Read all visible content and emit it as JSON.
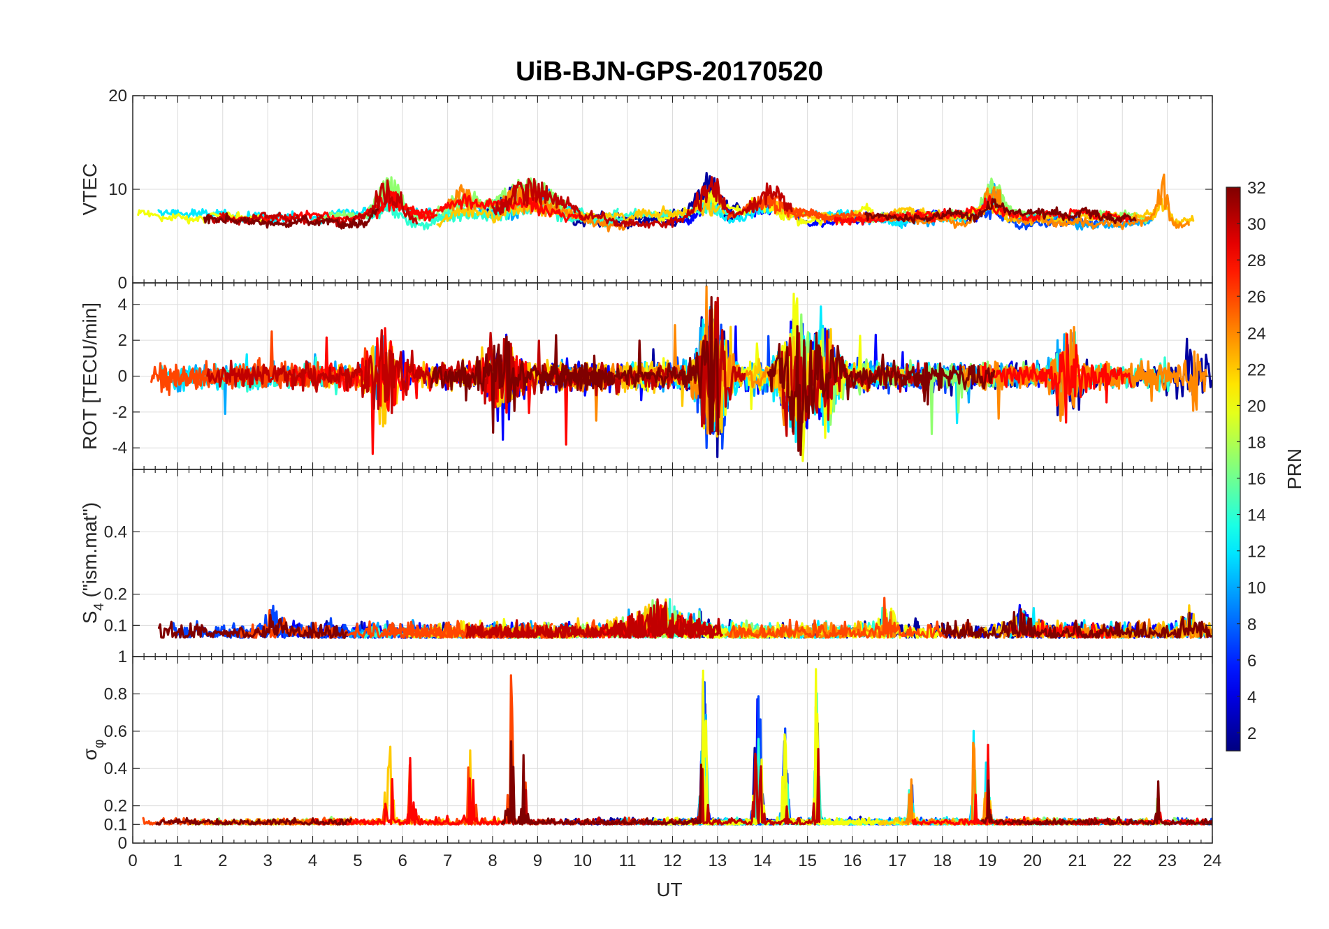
{
  "chart_data": {
    "type": "line",
    "title": "UiB-BJN-GPS-20170520",
    "xlabel": "UT",
    "xlim": [
      0,
      24
    ],
    "xticks": [
      0,
      1,
      2,
      3,
      4,
      5,
      6,
      7,
      8,
      9,
      10,
      11,
      12,
      13,
      14,
      15,
      16,
      17,
      18,
      19,
      20,
      21,
      22,
      23,
      24
    ],
    "grid": true,
    "colormap": "jet",
    "colorbar": {
      "label": "PRN",
      "range": [
        1,
        32
      ],
      "ticks": [
        2,
        4,
        6,
        8,
        10,
        12,
        14,
        16,
        18,
        20,
        22,
        24,
        26,
        28,
        30,
        32
      ],
      "placement": "right"
    },
    "panels": [
      {
        "id": "vtec",
        "ylabel": "VTEC",
        "ylim": [
          0,
          20
        ],
        "yticks": [
          0,
          10,
          20
        ],
        "baseline": 7,
        "noise": 1.2,
        "events": [
          {
            "t": 5.7,
            "h": 5,
            "w": 0.5
          },
          {
            "t": 7.3,
            "h": 3,
            "w": 0.6
          },
          {
            "t": 8.8,
            "h": 4,
            "w": 1.2
          },
          {
            "t": 12.8,
            "h": 5,
            "w": 0.5
          },
          {
            "t": 14.2,
            "h": 4,
            "w": 0.8
          },
          {
            "t": 19.1,
            "h": 4,
            "w": 0.4
          },
          {
            "t": 22.9,
            "h": 5,
            "w": 0.2
          }
        ]
      },
      {
        "id": "rot",
        "ylabel": "ROT [TECU/min]",
        "ylim": [
          -5.2,
          5.2
        ],
        "yticks": [
          -4,
          -2,
          0,
          2,
          4
        ],
        "baseline": 0,
        "noise": 0.5,
        "events": [
          {
            "t": 5.6,
            "h": 3.5,
            "w": 0.6
          },
          {
            "t": 8.2,
            "h": 3.0,
            "w": 0.6
          },
          {
            "t": 12.9,
            "h": 5.2,
            "w": 0.5
          },
          {
            "t": 14.8,
            "h": 5.0,
            "w": 0.6
          },
          {
            "t": 15.4,
            "h": 3.5,
            "w": 0.4
          },
          {
            "t": 20.8,
            "h": 3.0,
            "w": 0.5
          },
          {
            "t": 23.6,
            "h": 3.0,
            "w": 0.4
          }
        ]
      },
      {
        "id": "s4",
        "ylabel": "S4 (\"ism.mat\")",
        "ylabel_main": "S",
        "ylabel_sub": "4",
        "ylabel_rest": " (\"ism.mat\")",
        "ylim": [
          0,
          0.6
        ],
        "yticks": [
          0.1,
          0.2,
          0.4
        ],
        "baseline": 0.06,
        "noise": 0.03,
        "events": [
          {
            "t": 0.3,
            "h": 0.08,
            "w": 0.4
          },
          {
            "t": 3.1,
            "h": 0.1,
            "w": 0.4
          },
          {
            "t": 11.7,
            "h": 0.1,
            "w": 1.2
          },
          {
            "t": 16.8,
            "h": 0.1,
            "w": 0.3
          },
          {
            "t": 19.8,
            "h": 0.08,
            "w": 0.5
          },
          {
            "t": 23.5,
            "h": 0.08,
            "w": 0.3
          }
        ]
      },
      {
        "id": "sigma",
        "ylabel": "σ φ",
        "ylabel_main": "σ",
        "ylabel_sub": "φ",
        "ylim": [
          0,
          1
        ],
        "yticks": [
          0,
          0.1,
          0.2,
          0.4,
          0.6,
          0.8,
          1
        ],
        "baseline": 0.1,
        "noise": 0.02,
        "events": [
          {
            "t": 5.7,
            "h": 0.45,
            "w": 0.15
          },
          {
            "t": 6.2,
            "h": 0.45,
            "w": 0.1
          },
          {
            "t": 7.5,
            "h": 0.5,
            "w": 0.15
          },
          {
            "t": 8.4,
            "h": 0.8,
            "w": 0.1
          },
          {
            "t": 8.7,
            "h": 0.4,
            "w": 0.1
          },
          {
            "t": 12.7,
            "h": 0.9,
            "w": 0.1
          },
          {
            "t": 13.9,
            "h": 0.9,
            "w": 0.12
          },
          {
            "t": 14.5,
            "h": 0.5,
            "w": 0.1
          },
          {
            "t": 15.2,
            "h": 0.9,
            "w": 0.08
          },
          {
            "t": 17.3,
            "h": 0.45,
            "w": 0.06
          },
          {
            "t": 18.7,
            "h": 0.5,
            "w": 0.06
          },
          {
            "t": 19.0,
            "h": 0.45,
            "w": 0.08
          },
          {
            "t": 22.8,
            "h": 0.22,
            "w": 0.06
          }
        ]
      }
    ],
    "series_prn": [
      2,
      5,
      7,
      10,
      12,
      14,
      17,
      20,
      22,
      24,
      26,
      28,
      30,
      32
    ]
  }
}
